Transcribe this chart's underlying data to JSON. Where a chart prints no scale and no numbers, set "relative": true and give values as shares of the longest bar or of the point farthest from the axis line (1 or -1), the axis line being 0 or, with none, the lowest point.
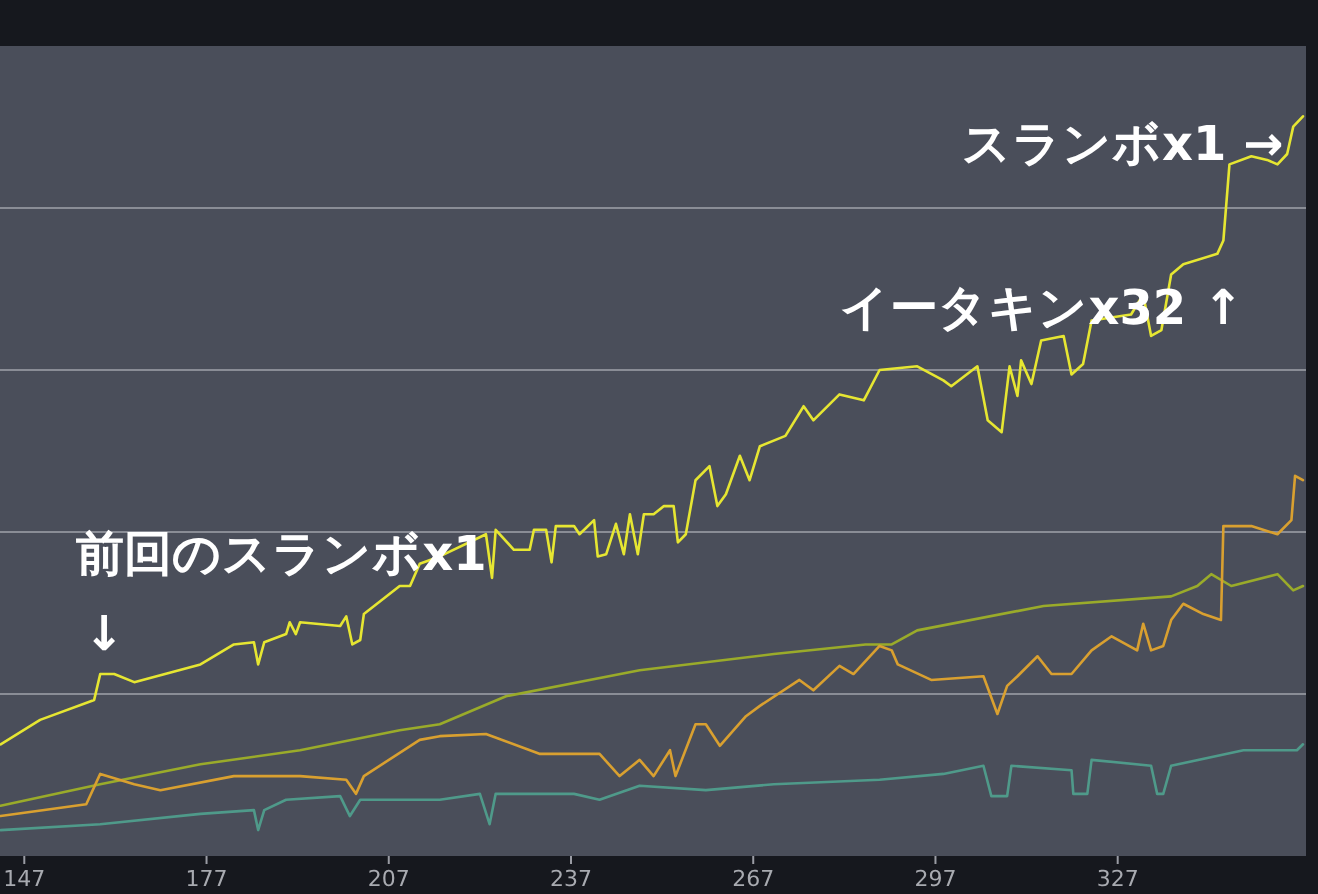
{
  "chart_data": {
    "type": "line",
    "relative": true,
    "xlim": [
      143,
      358
    ],
    "xticks": [
      147,
      177,
      207,
      237,
      267,
      297,
      327
    ],
    "tick_labels": "x",
    "grid": "y",
    "marker": "none",
    "line_style": "solid",
    "annotations": [
      {
        "text": "前回のスランボx1\n↓",
        "x": 159.5,
        "y": 0.246
      },
      {
        "text": "イータキンx32 ↑",
        "x": 343.7,
        "y": 0.814
      },
      {
        "text": "スランボx1 →",
        "x": 355.6,
        "y": 0.973
      }
    ],
    "series": [
      {
        "color": "#e6e632",
        "x": [
          143.1,
          149.6,
          158.5,
          159.5,
          161.8,
          165.1,
          176,
          181.5,
          184.8,
          185.5,
          186.5,
          190.1,
          190.7,
          191.7,
          192.4,
          199,
          200,
          201,
          202.3,
          202.9,
          208.8,
          210.5,
          212.1,
          215.4,
          223,
          224,
          224.6,
          227.6,
          230.2,
          230.9,
          232.9,
          233.8,
          234.5,
          237.5,
          238.4,
          240.8,
          241.4,
          242.8,
          244.4,
          245.7,
          246.7,
          248,
          249,
          250.6,
          252.3,
          253.9,
          254.6,
          255.9,
          257.5,
          259.8,
          261.1,
          262.5,
          264.8,
          266.4,
          268.1,
          272.3,
          275.3,
          276.9,
          281.2,
          285.2,
          287.8,
          294,
          298.3,
          299.6,
          303.9,
          305.6,
          307.9,
          309.2,
          310.5,
          311.1,
          312.8,
          314.4,
          318.1,
          319.4,
          321.3,
          322.7,
          329.2,
          331.2,
          332.5,
          334.2,
          335.8,
          337.8,
          343.4,
          344.4,
          345.4,
          349,
          351.6,
          353.3,
          354.9,
          355.9,
          357.5
        ],
        "values": [
          0.151,
          0.184,
          0.211,
          0.246,
          0.246,
          0.235,
          0.259,
          0.286,
          0.289,
          0.259,
          0.289,
          0.3,
          0.316,
          0.3,
          0.316,
          0.311,
          0.324,
          0.286,
          0.292,
          0.327,
          0.365,
          0.365,
          0.395,
          0.405,
          0.435,
          0.376,
          0.441,
          0.414,
          0.414,
          0.441,
          0.441,
          0.397,
          0.446,
          0.446,
          0.435,
          0.454,
          0.405,
          0.408,
          0.449,
          0.408,
          0.462,
          0.408,
          0.462,
          0.462,
          0.473,
          0.473,
          0.424,
          0.435,
          0.508,
          0.527,
          0.473,
          0.489,
          0.541,
          0.508,
          0.554,
          0.568,
          0.608,
          0.589,
          0.624,
          0.616,
          0.657,
          0.662,
          0.643,
          0.635,
          0.662,
          0.589,
          0.573,
          0.662,
          0.622,
          0.67,
          0.638,
          0.697,
          0.703,
          0.651,
          0.665,
          0.724,
          0.732,
          0.759,
          0.703,
          0.711,
          0.786,
          0.8,
          0.814,
          0.832,
          0.935,
          0.946,
          0.941,
          0.935,
          0.949,
          0.986,
          1
        ]
      },
      {
        "color": "#9aab2a",
        "x": [
          143.1,
          159.5,
          176,
          192.4,
          208.8,
          215.4,
          226.3,
          248.3,
          270.4,
          285.5,
          289.8,
          294,
          314.8,
          335.8,
          340.1,
          342.4,
          345.7,
          353.3,
          355.9,
          357.5
        ],
        "values": [
          0.068,
          0.097,
          0.124,
          0.143,
          0.17,
          0.178,
          0.216,
          0.251,
          0.273,
          0.286,
          0.286,
          0.305,
          0.338,
          0.351,
          0.365,
          0.381,
          0.365,
          0.381,
          0.359,
          0.365
        ]
      },
      {
        "color": "#d9a030",
        "x": [
          143.1,
          157.2,
          159.5,
          165.1,
          169.4,
          181.5,
          192.4,
          200,
          201.6,
          202.9,
          212.1,
          215.4,
          223,
          231.9,
          241.7,
          245,
          248.3,
          250.6,
          253.3,
          254.2,
          257.5,
          259.2,
          261.5,
          265.8,
          268.1,
          274.6,
          276.9,
          281.2,
          283.5,
          287.8,
          289.8,
          290.8,
          296.3,
          304.9,
          307.2,
          308.8,
          310.5,
          313.8,
          316.1,
          319.4,
          322.7,
          326,
          330.2,
          331.2,
          332.5,
          334.5,
          335.8,
          337.8,
          341.1,
          344,
          344.4,
          349,
          353.3,
          355.6,
          356.2,
          357.5
        ],
        "values": [
          0.054,
          0.07,
          0.111,
          0.097,
          0.089,
          0.108,
          0.108,
          0.103,
          0.084,
          0.108,
          0.157,
          0.162,
          0.165,
          0.138,
          0.138,
          0.108,
          0.13,
          0.108,
          0.143,
          0.108,
          0.178,
          0.178,
          0.149,
          0.189,
          0.203,
          0.238,
          0.224,
          0.257,
          0.246,
          0.284,
          0.278,
          0.259,
          0.238,
          0.243,
          0.192,
          0.23,
          0.243,
          0.27,
          0.246,
          0.246,
          0.278,
          0.297,
          0.278,
          0.314,
          0.278,
          0.284,
          0.319,
          0.341,
          0.327,
          0.319,
          0.446,
          0.446,
          0.435,
          0.454,
          0.514,
          0.508
        ]
      },
      {
        "color": "#4f9a8a",
        "x": [
          143.1,
          159.5,
          176,
          184.8,
          185.5,
          186.5,
          190.1,
          199,
          200.6,
          202.3,
          215.4,
          222,
          223.6,
          224.6,
          237.5,
          241.7,
          248.3,
          259.2,
          270.4,
          287.8,
          298.3,
          304.9,
          306.2,
          308.8,
          309.5,
          319.4,
          319.7,
          322,
          322.7,
          332.5,
          333.5,
          334.5,
          335.8,
          347.7,
          356.5,
          357.5
        ],
        "values": [
          0.035,
          0.043,
          0.057,
          0.062,
          0.035,
          0.062,
          0.076,
          0.081,
          0.054,
          0.076,
          0.076,
          0.084,
          0.043,
          0.084,
          0.084,
          0.076,
          0.095,
          0.089,
          0.097,
          0.103,
          0.111,
          0.122,
          0.081,
          0.081,
          0.122,
          0.116,
          0.084,
          0.084,
          0.13,
          0.122,
          0.084,
          0.084,
          0.122,
          0.143,
          0.143,
          0.151
        ]
      }
    ]
  }
}
